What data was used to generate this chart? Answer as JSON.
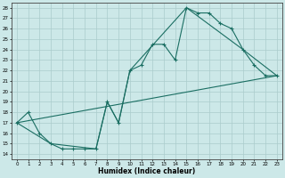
{
  "xlabel": "Humidex (Indice chaleur)",
  "xlim": [
    -0.5,
    23.5
  ],
  "ylim": [
    13.5,
    28.5
  ],
  "xticks": [
    0,
    1,
    2,
    3,
    4,
    5,
    6,
    7,
    8,
    9,
    10,
    11,
    12,
    13,
    14,
    15,
    16,
    17,
    18,
    19,
    20,
    21,
    22,
    23
  ],
  "yticks": [
    14,
    15,
    16,
    17,
    18,
    19,
    20,
    21,
    22,
    23,
    24,
    25,
    26,
    27,
    28
  ],
  "line_color": "#1a6e62",
  "bg_color": "#cce8e8",
  "grid_color": "#aacccc",
  "line1_x": [
    0,
    1,
    2,
    3,
    4,
    5,
    6,
    7,
    8,
    9,
    10,
    11,
    12,
    13,
    14,
    15,
    16,
    17,
    18,
    19,
    20,
    21,
    22,
    23
  ],
  "line1_y": [
    17.0,
    18.0,
    16.0,
    15.0,
    14.5,
    14.5,
    14.5,
    14.5,
    19.0,
    17.0,
    22.0,
    22.5,
    24.5,
    24.5,
    23.0,
    28.0,
    27.5,
    27.5,
    26.5,
    26.0,
    24.0,
    22.5,
    21.5,
    21.5
  ],
  "line2_x": [
    0,
    23
  ],
  "line2_y": [
    17.0,
    21.5
  ],
  "line3_x": [
    0,
    3,
    7,
    8,
    9,
    10,
    15,
    20,
    23
  ],
  "line3_y": [
    17.0,
    15.0,
    14.5,
    19.0,
    17.0,
    22.0,
    28.0,
    24.0,
    21.5
  ]
}
